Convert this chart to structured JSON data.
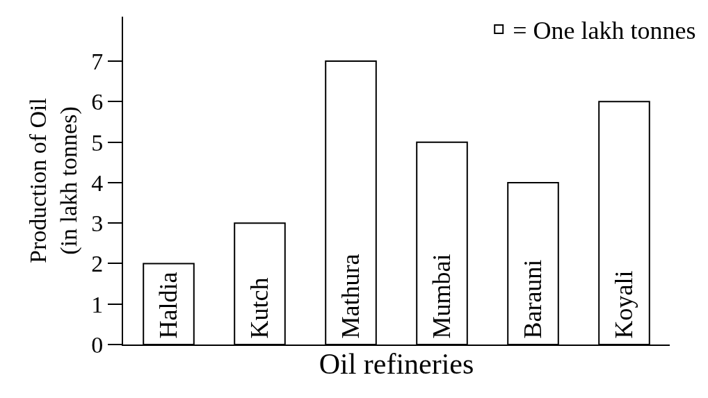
{
  "chart_data": {
    "type": "bar",
    "xlabel": "Oil refineries",
    "ylabel": "Production of Oil\n(in lakh tonnes)",
    "categories": [
      "Haldia",
      "Kutch",
      "Mathura",
      "Mumbai",
      "Barauni",
      "Koyali"
    ],
    "series": [
      {
        "name": "= One lakh tonnes",
        "color": "#ffffff",
        "values": [
          2,
          3,
          7,
          5,
          4,
          6
        ]
      }
    ],
    "ylim": [
      0,
      8.1
    ],
    "yticks": [
      0,
      1,
      2,
      3,
      4,
      5,
      6,
      7
    ],
    "legend": "top right"
  }
}
